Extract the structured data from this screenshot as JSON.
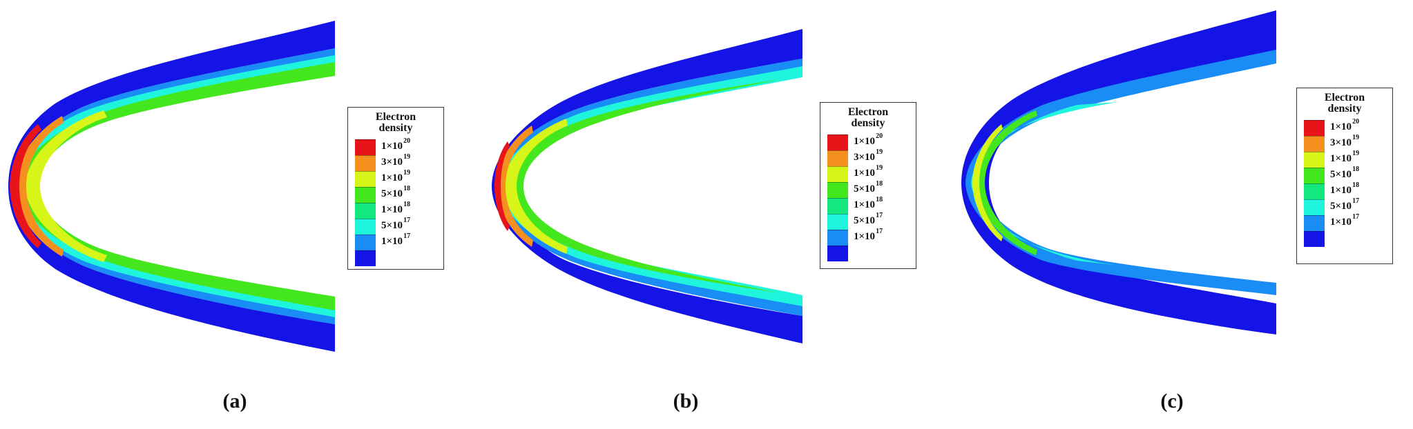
{
  "legend": {
    "title_line1": "Electron",
    "title_line2": "density",
    "levels": [
      {
        "mantissa": "1×10",
        "exponent": "20",
        "color": "#e8141a"
      },
      {
        "mantissa": "3×10",
        "exponent": "19",
        "color": "#f5901e"
      },
      {
        "mantissa": "1×10",
        "exponent": "19",
        "color": "#d8f51a"
      },
      {
        "mantissa": "5×10",
        "exponent": "18",
        "color": "#44e61e"
      },
      {
        "mantissa": "1×10",
        "exponent": "18",
        "color": "#12e87e"
      },
      {
        "mantissa": "5×10",
        "exponent": "17",
        "color": "#1ef5dc"
      },
      {
        "mantissa": "1×10",
        "exponent": "17",
        "color": "#1a8cf5"
      }
    ],
    "bottom_color": "#1414e6"
  },
  "panels": [
    {
      "caption": "(a)"
    },
    {
      "caption": "(b)"
    },
    {
      "caption": "(c)"
    }
  ]
}
